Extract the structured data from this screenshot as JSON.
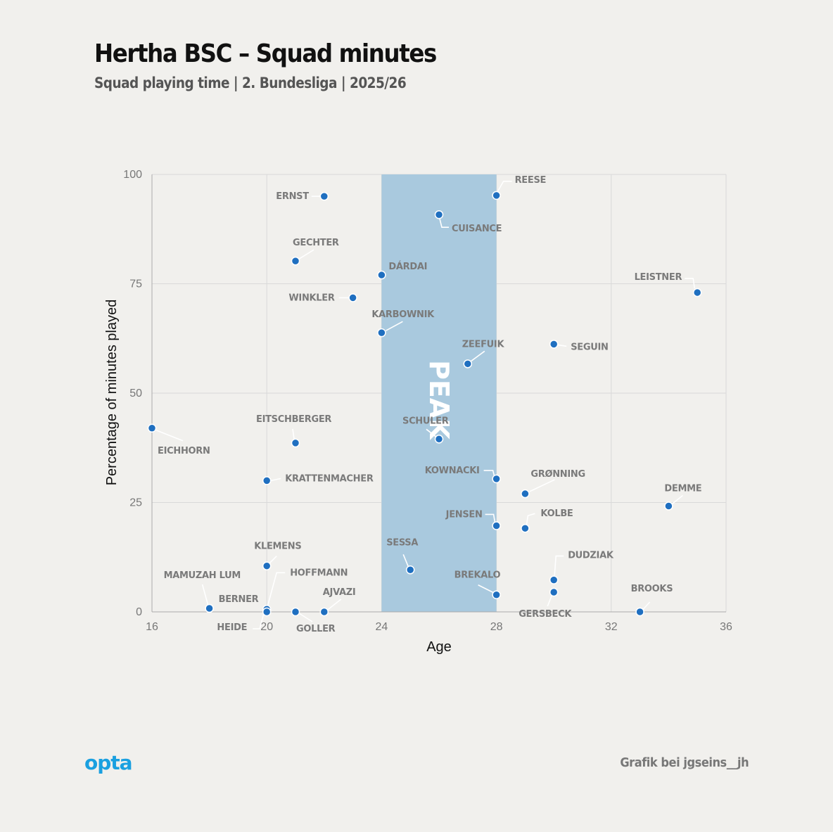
{
  "header": {
    "title": "Hertha BSC – Squad minutes",
    "subtitle": "Squad playing time | 2. Bundesliga | 2025/26"
  },
  "footer": {
    "logo": "opta",
    "credit": "Grafik bei jgseins__jh"
  },
  "colors": {
    "background": "#f1f0ed",
    "band": "#a9c9de",
    "point": "#1f6fc0",
    "label": "#7a7a7a"
  },
  "chart_data": {
    "type": "scatter",
    "title": "Hertha BSC – Squad minutes",
    "subtitle": "Squad playing time | 2. Bundesliga | 2025/26",
    "xlabel": "Age",
    "ylabel": "Percentage of minutes played",
    "xlim": [
      16,
      36
    ],
    "ylim": [
      0,
      100
    ],
    "xticks": [
      16,
      20,
      24,
      28,
      32,
      36
    ],
    "yticks": [
      0,
      25,
      50,
      75,
      100
    ],
    "grid": true,
    "highlight_band": {
      "x_from": 24,
      "x_to": 28,
      "label": "PEAK"
    },
    "points": [
      {
        "name": "ERNST",
        "x": 22,
        "y": 95
      },
      {
        "name": "REESE",
        "x": 28,
        "y": 95.2
      },
      {
        "name": "CUISANCE",
        "x": 26,
        "y": 90.8
      },
      {
        "name": "GECHTER",
        "x": 21,
        "y": 80.2
      },
      {
        "name": "DÁRDAI",
        "x": 24,
        "y": 77
      },
      {
        "name": "LEISTNER",
        "x": 35,
        "y": 73
      },
      {
        "name": "WINKLER",
        "x": 23,
        "y": 71.8
      },
      {
        "name": "KARBOWNIK",
        "x": 24,
        "y": 63.8
      },
      {
        "name": "SEGUIN",
        "x": 30,
        "y": 61.2
      },
      {
        "name": "ZEEFUIK",
        "x": 27,
        "y": 56.7
      },
      {
        "name": "EICHHORN",
        "x": 16,
        "y": 42
      },
      {
        "name": "SCHULER",
        "x": 26,
        "y": 39.5
      },
      {
        "name": "EITSCHBERGER",
        "x": 21,
        "y": 38.6
      },
      {
        "name": "KOWNACKI",
        "x": 28,
        "y": 30.4
      },
      {
        "name": "KRATTENMACHER",
        "x": 20,
        "y": 30
      },
      {
        "name": "GRØNNING",
        "x": 29,
        "y": 27
      },
      {
        "name": "DEMME",
        "x": 34,
        "y": 24.2
      },
      {
        "name": "JENSEN",
        "x": 28,
        "y": 19.7
      },
      {
        "name": "KOLBE",
        "x": 29,
        "y": 19.1
      },
      {
        "name": "KLEMENS",
        "x": 20,
        "y": 10.5
      },
      {
        "name": "SESSA",
        "x": 25,
        "y": 9.6
      },
      {
        "name": "DUDZIAK",
        "x": 30,
        "y": 7.3
      },
      {
        "name": "GERSBECK",
        "x": 30,
        "y": 4.5
      },
      {
        "name": "BREKALO",
        "x": 28,
        "y": 3.9
      },
      {
        "name": "HOFFMANN",
        "x": 20,
        "y": 0.6
      },
      {
        "name": "MAMUZAH LUM",
        "x": 18,
        "y": 0.8
      },
      {
        "name": "BERNER",
        "x": 18,
        "y": 0.8
      },
      {
        "name": "HEIDE",
        "x": 20,
        "y": 0
      },
      {
        "name": "GOLLER",
        "x": 21,
        "y": 0
      },
      {
        "name": "AJVAZI",
        "x": 22,
        "y": 0
      },
      {
        "name": "BROOKS",
        "x": 33,
        "y": 0
      }
    ]
  }
}
